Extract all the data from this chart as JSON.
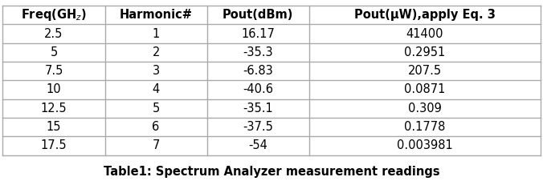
{
  "headers": [
    "Freq(GH$_z$)",
    "Harmonic#",
    "Pout(dBm)",
    "Pout(μW),apply Eq. 3"
  ],
  "rows": [
    [
      "2.5",
      "1",
      "16.17",
      "41400"
    ],
    [
      "5",
      "2",
      "-35.3",
      "0.2951"
    ],
    [
      "7.5",
      "3",
      "-6.83",
      "207.5"
    ],
    [
      "10",
      "4",
      "-40.6",
      "0.0871"
    ],
    [
      "12.5",
      "5",
      "-35.1",
      "0.309"
    ],
    [
      "15",
      "6",
      "-37.5",
      "0.1778"
    ],
    [
      "17.5",
      "7",
      "-54",
      "0.003981"
    ]
  ],
  "caption": "Table1: Spectrum Analyzer measurement readings",
  "col_props": [
    0.19,
    0.19,
    0.19,
    0.43
  ],
  "line_color": "#aaaaaa",
  "text_color": "#000000",
  "header_fontsize": 10.5,
  "cell_fontsize": 10.5,
  "caption_fontsize": 10.5,
  "fig_width": 6.76,
  "fig_height": 2.36,
  "dpi": 100
}
